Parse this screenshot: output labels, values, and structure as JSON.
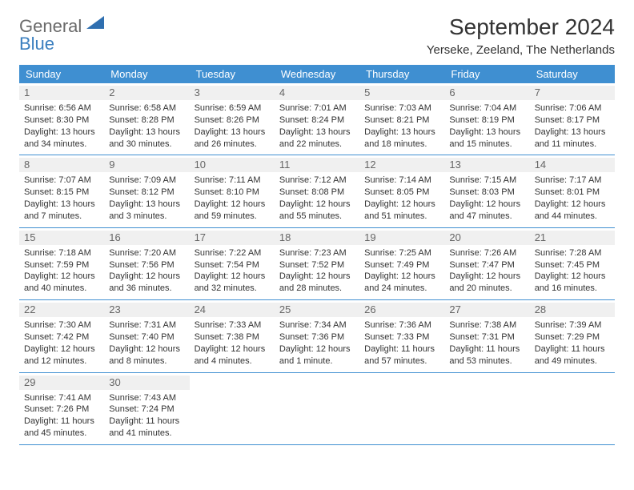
{
  "logo": {
    "text1": "General",
    "text2": "Blue"
  },
  "title": "September 2024",
  "location": "Yerseke, Zeeland, The Netherlands",
  "colors": {
    "header_bg": "#3f8fd1",
    "header_fg": "#ffffff",
    "daynum_bg": "#f0f0f0",
    "text": "#333333",
    "logo_gray": "#6a6a6a",
    "logo_blue": "#3b7fbf",
    "rule": "#3f8fd1"
  },
  "dows": [
    "Sunday",
    "Monday",
    "Tuesday",
    "Wednesday",
    "Thursday",
    "Friday",
    "Saturday"
  ],
  "weeks": [
    [
      {
        "n": "1",
        "sr": "6:56 AM",
        "ss": "8:30 PM",
        "dl": "13 hours and 34 minutes."
      },
      {
        "n": "2",
        "sr": "6:58 AM",
        "ss": "8:28 PM",
        "dl": "13 hours and 30 minutes."
      },
      {
        "n": "3",
        "sr": "6:59 AM",
        "ss": "8:26 PM",
        "dl": "13 hours and 26 minutes."
      },
      {
        "n": "4",
        "sr": "7:01 AM",
        "ss": "8:24 PM",
        "dl": "13 hours and 22 minutes."
      },
      {
        "n": "5",
        "sr": "7:03 AM",
        "ss": "8:21 PM",
        "dl": "13 hours and 18 minutes."
      },
      {
        "n": "6",
        "sr": "7:04 AM",
        "ss": "8:19 PM",
        "dl": "13 hours and 15 minutes."
      },
      {
        "n": "7",
        "sr": "7:06 AM",
        "ss": "8:17 PM",
        "dl": "13 hours and 11 minutes."
      }
    ],
    [
      {
        "n": "8",
        "sr": "7:07 AM",
        "ss": "8:15 PM",
        "dl": "13 hours and 7 minutes."
      },
      {
        "n": "9",
        "sr": "7:09 AM",
        "ss": "8:12 PM",
        "dl": "13 hours and 3 minutes."
      },
      {
        "n": "10",
        "sr": "7:11 AM",
        "ss": "8:10 PM",
        "dl": "12 hours and 59 minutes."
      },
      {
        "n": "11",
        "sr": "7:12 AM",
        "ss": "8:08 PM",
        "dl": "12 hours and 55 minutes."
      },
      {
        "n": "12",
        "sr": "7:14 AM",
        "ss": "8:05 PM",
        "dl": "12 hours and 51 minutes."
      },
      {
        "n": "13",
        "sr": "7:15 AM",
        "ss": "8:03 PM",
        "dl": "12 hours and 47 minutes."
      },
      {
        "n": "14",
        "sr": "7:17 AM",
        "ss": "8:01 PM",
        "dl": "12 hours and 44 minutes."
      }
    ],
    [
      {
        "n": "15",
        "sr": "7:18 AM",
        "ss": "7:59 PM",
        "dl": "12 hours and 40 minutes."
      },
      {
        "n": "16",
        "sr": "7:20 AM",
        "ss": "7:56 PM",
        "dl": "12 hours and 36 minutes."
      },
      {
        "n": "17",
        "sr": "7:22 AM",
        "ss": "7:54 PM",
        "dl": "12 hours and 32 minutes."
      },
      {
        "n": "18",
        "sr": "7:23 AM",
        "ss": "7:52 PM",
        "dl": "12 hours and 28 minutes."
      },
      {
        "n": "19",
        "sr": "7:25 AM",
        "ss": "7:49 PM",
        "dl": "12 hours and 24 minutes."
      },
      {
        "n": "20",
        "sr": "7:26 AM",
        "ss": "7:47 PM",
        "dl": "12 hours and 20 minutes."
      },
      {
        "n": "21",
        "sr": "7:28 AM",
        "ss": "7:45 PM",
        "dl": "12 hours and 16 minutes."
      }
    ],
    [
      {
        "n": "22",
        "sr": "7:30 AM",
        "ss": "7:42 PM",
        "dl": "12 hours and 12 minutes."
      },
      {
        "n": "23",
        "sr": "7:31 AM",
        "ss": "7:40 PM",
        "dl": "12 hours and 8 minutes."
      },
      {
        "n": "24",
        "sr": "7:33 AM",
        "ss": "7:38 PM",
        "dl": "12 hours and 4 minutes."
      },
      {
        "n": "25",
        "sr": "7:34 AM",
        "ss": "7:36 PM",
        "dl": "12 hours and 1 minute."
      },
      {
        "n": "26",
        "sr": "7:36 AM",
        "ss": "7:33 PM",
        "dl": "11 hours and 57 minutes."
      },
      {
        "n": "27",
        "sr": "7:38 AM",
        "ss": "7:31 PM",
        "dl": "11 hours and 53 minutes."
      },
      {
        "n": "28",
        "sr": "7:39 AM",
        "ss": "7:29 PM",
        "dl": "11 hours and 49 minutes."
      }
    ],
    [
      {
        "n": "29",
        "sr": "7:41 AM",
        "ss": "7:26 PM",
        "dl": "11 hours and 45 minutes."
      },
      {
        "n": "30",
        "sr": "7:43 AM",
        "ss": "7:24 PM",
        "dl": "11 hours and 41 minutes."
      },
      {
        "empty": true
      },
      {
        "empty": true
      },
      {
        "empty": true
      },
      {
        "empty": true
      },
      {
        "empty": true
      }
    ]
  ],
  "labels": {
    "sunrise": "Sunrise:",
    "sunset": "Sunset:",
    "daylight": "Daylight:"
  }
}
